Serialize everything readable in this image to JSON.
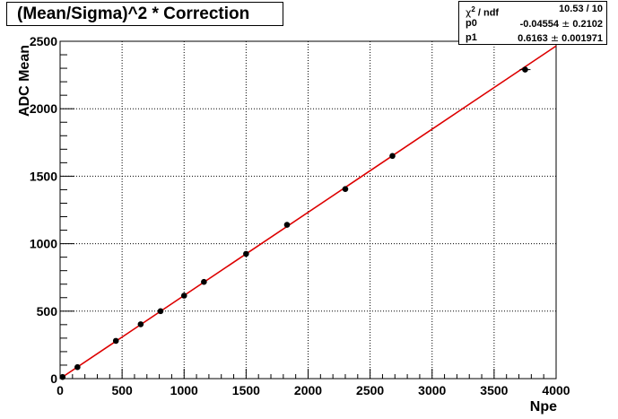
{
  "chart_data": {
    "type": "scatter",
    "title": "(Mean/Sigma)^2 * Correction",
    "xlabel": "Npe",
    "ylabel": "ADC Mean",
    "xlim": [
      0,
      4000
    ],
    "ylim": [
      0,
      2500
    ],
    "xticks": [
      0,
      500,
      1000,
      1500,
      2000,
      2500,
      3000,
      3500,
      4000
    ],
    "yticks": [
      0,
      500,
      1000,
      1500,
      2000,
      2500
    ],
    "grid": true,
    "series": [
      {
        "points": [
          {
            "x": 20,
            "y": 12
          },
          {
            "x": 140,
            "y": 85
          },
          {
            "x": 450,
            "y": 280
          },
          {
            "x": 650,
            "y": 403
          },
          {
            "x": 810,
            "y": 500
          },
          {
            "x": 1000,
            "y": 615
          },
          {
            "x": 1160,
            "y": 717
          },
          {
            "x": 1500,
            "y": 925
          },
          {
            "x": 1830,
            "y": 1140
          },
          {
            "x": 2300,
            "y": 1405
          },
          {
            "x": 2680,
            "y": 1650
          },
          {
            "x": 3750,
            "y": 2290
          }
        ],
        "color": "#000000"
      }
    ],
    "fit": {
      "color": "#dd0000",
      "p0": -0.04554,
      "p1": 0.6163
    },
    "stats": {
      "rows": [
        {
          "label_sym": "χ",
          "label_sup": "2",
          "label_rest": " / ndf",
          "value": "10.53 / 10"
        },
        {
          "label": "p0",
          "value": "-0.04554",
          "pm": "±",
          "error": "0.2102"
        },
        {
          "label": "p1",
          "value": "0.6163",
          "pm": "±",
          "error": "0.001971"
        }
      ]
    }
  }
}
